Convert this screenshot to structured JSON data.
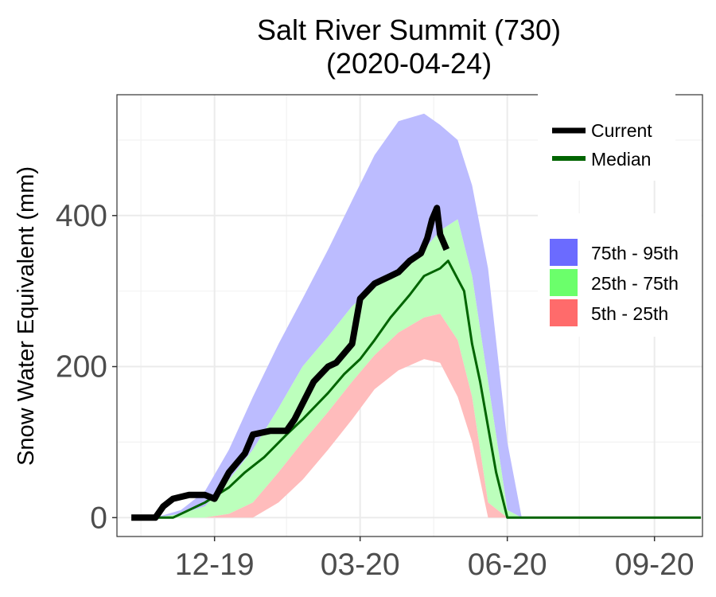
{
  "chart_data": {
    "type": "area",
    "title": "Salt River Summit (730)",
    "subtitle": "(2020-04-24)",
    "xlabel": "",
    "ylabel": "Snow Water Equivalent (mm)",
    "x_ticks": [
      "12-19",
      "03-20",
      "06-20",
      "09-20"
    ],
    "y_ticks": [
      0,
      200,
      400
    ],
    "xlim": [
      "2019-10-01",
      "2020-10-01"
    ],
    "ylim": [
      -25,
      560
    ],
    "grid": true,
    "legend_position": "right",
    "band_legend": [
      {
        "label": "75th - 95th",
        "color": "#6b6bff"
      },
      {
        "label": "25th - 75th",
        "color": "#6bff6b"
      },
      {
        "label": "5th - 25th",
        "color": "#ff6b6b"
      }
    ],
    "bands": {
      "x": [
        "2019-10-10",
        "2019-10-25",
        "2019-11-10",
        "2019-11-25",
        "2019-12-10",
        "2019-12-25",
        "2020-01-10",
        "2020-01-25",
        "2020-02-10",
        "2020-02-25",
        "2020-03-10",
        "2020-03-25",
        "2020-04-10",
        "2020-04-20",
        "2020-05-01",
        "2020-05-10",
        "2020-05-20",
        "2020-06-01",
        "2020-06-10",
        "2020-09-30"
      ],
      "p5": [
        0,
        0,
        0,
        0,
        0,
        0,
        20,
        50,
        90,
        130,
        170,
        195,
        210,
        205,
        160,
        100,
        0,
        0,
        0,
        0
      ],
      "p25": [
        0,
        0,
        0,
        0,
        5,
        20,
        60,
        100,
        140,
        180,
        215,
        245,
        265,
        270,
        235,
        160,
        20,
        0,
        0,
        0
      ],
      "p75": [
        0,
        0,
        5,
        15,
        50,
        90,
        145,
        200,
        240,
        280,
        305,
        330,
        355,
        380,
        395,
        320,
        180,
        10,
        0,
        0
      ],
      "p95": [
        0,
        0,
        10,
        35,
        90,
        160,
        230,
        290,
        355,
        420,
        480,
        525,
        535,
        520,
        500,
        440,
        330,
        100,
        0,
        0
      ]
    },
    "series": [
      {
        "name": "Current",
        "color": "#000000",
        "x": [
          "2019-10-10",
          "2019-10-25",
          "2019-10-30",
          "2019-11-05",
          "2019-11-15",
          "2019-11-25",
          "2019-12-01",
          "2019-12-10",
          "2019-12-20",
          "2019-12-25",
          "2020-01-05",
          "2020-01-15",
          "2020-01-20",
          "2020-02-01",
          "2020-02-10",
          "2020-02-15",
          "2020-02-25",
          "2020-03-01",
          "2020-03-10",
          "2020-03-20",
          "2020-03-25",
          "2020-04-01",
          "2020-04-08",
          "2020-04-12",
          "2020-04-15",
          "2020-04-18",
          "2020-04-20",
          "2020-04-24"
        ],
        "y": [
          0,
          0,
          15,
          25,
          30,
          30,
          25,
          60,
          85,
          110,
          115,
          115,
          130,
          180,
          200,
          205,
          230,
          290,
          310,
          320,
          325,
          340,
          350,
          370,
          395,
          410,
          375,
          355
        ]
      },
      {
        "name": "Median",
        "color": "#006400",
        "x": [
          "2019-10-25",
          "2019-11-05",
          "2019-11-15",
          "2019-11-25",
          "2019-12-10",
          "2019-12-20",
          "2020-01-01",
          "2020-01-15",
          "2020-01-25",
          "2020-02-10",
          "2020-02-20",
          "2020-03-01",
          "2020-03-10",
          "2020-03-20",
          "2020-04-01",
          "2020-04-10",
          "2020-04-20",
          "2020-04-25",
          "2020-05-05",
          "2020-05-10",
          "2020-05-15",
          "2020-05-20",
          "2020-05-25",
          "2020-06-01",
          "2020-06-10",
          "2020-09-30"
        ],
        "y": [
          0,
          0,
          10,
          20,
          40,
          60,
          80,
          110,
          130,
          165,
          190,
          210,
          235,
          265,
          295,
          320,
          330,
          340,
          300,
          230,
          180,
          120,
          60,
          0,
          0,
          0
        ]
      }
    ]
  }
}
